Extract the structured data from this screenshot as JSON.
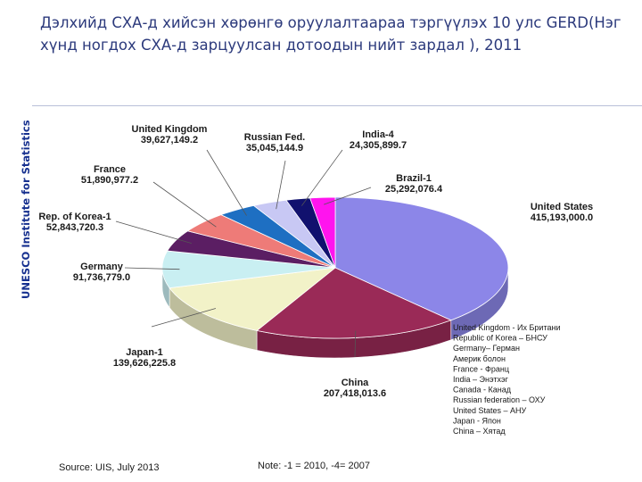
{
  "side_label": "UNESCO Institute for Statistics",
  "title": "Дэлхийд СХА-д хийсэн хөрөнгө оруулалтаараа тэргүүлэх 10 улс GERD(Нэг хүнд ногдох СХА-д зарцуулсан дотоодын нийт зардал ), 2011",
  "source": "Source: UIS, July 2013",
  "note": "Note: -1 = 2010, -4= 2007",
  "glossary": [
    "United Kingdom - Их Британи",
    "Republic of Korea – БНСУ",
    "Germany– Герман",
    "Америк болон",
    "France - Франц",
    "India – Энэтхэг",
    "Canada - Канад",
    "Russian federation – ОХУ",
    "United States – АНУ",
    "Japan - Япон",
    "China – Хятад"
  ],
  "chart_data": {
    "type": "pie",
    "title": "Дэлхийд СХА-д хийсэн хөрөнгө оруулалтаараа тэргүүлэх 10 улс GERD(Нэг хүнд ногдох СХА-д зарцуулсан дотоодын нийт зардал ), 2011",
    "slices": [
      {
        "name": "United States",
        "value": 415193000.0,
        "value_label": "415,193,000.0",
        "color": "#8c86e8"
      },
      {
        "name": "China",
        "value": 207418013.6,
        "value_label": "207,418,013.6",
        "color": "#9a2a57"
      },
      {
        "name": "Japan-1",
        "value": 139626225.8,
        "value_label": "139,626,225.8",
        "color": "#f2f2c8"
      },
      {
        "name": "Germany",
        "value": 91736779.0,
        "value_label": "91,736,779.0",
        "color": "#c9eff2"
      },
      {
        "name": "Rep. of Korea-1",
        "value": 52843720.3,
        "value_label": "52,843,720.3",
        "color": "#5b1e63"
      },
      {
        "name": "France",
        "value": 51890977.2,
        "value_label": "51,890,977.2",
        "color": "#ee7b78"
      },
      {
        "name": "United Kingdom",
        "value": 39627149.2,
        "value_label": "39,627,149.2",
        "color": "#1e6fc2"
      },
      {
        "name": "Russian Fed.",
        "value": 35045144.9,
        "value_label": "35,045,144.9",
        "color": "#c8c8f4"
      },
      {
        "name": "India-4",
        "value": 24305899.7,
        "value_label": "24,305,899.7",
        "color": "#11116e"
      },
      {
        "name": "Brazil-1",
        "value": 25292076.4,
        "value_label": "25,292,076.4",
        "color": "#ff14ee"
      }
    ]
  }
}
